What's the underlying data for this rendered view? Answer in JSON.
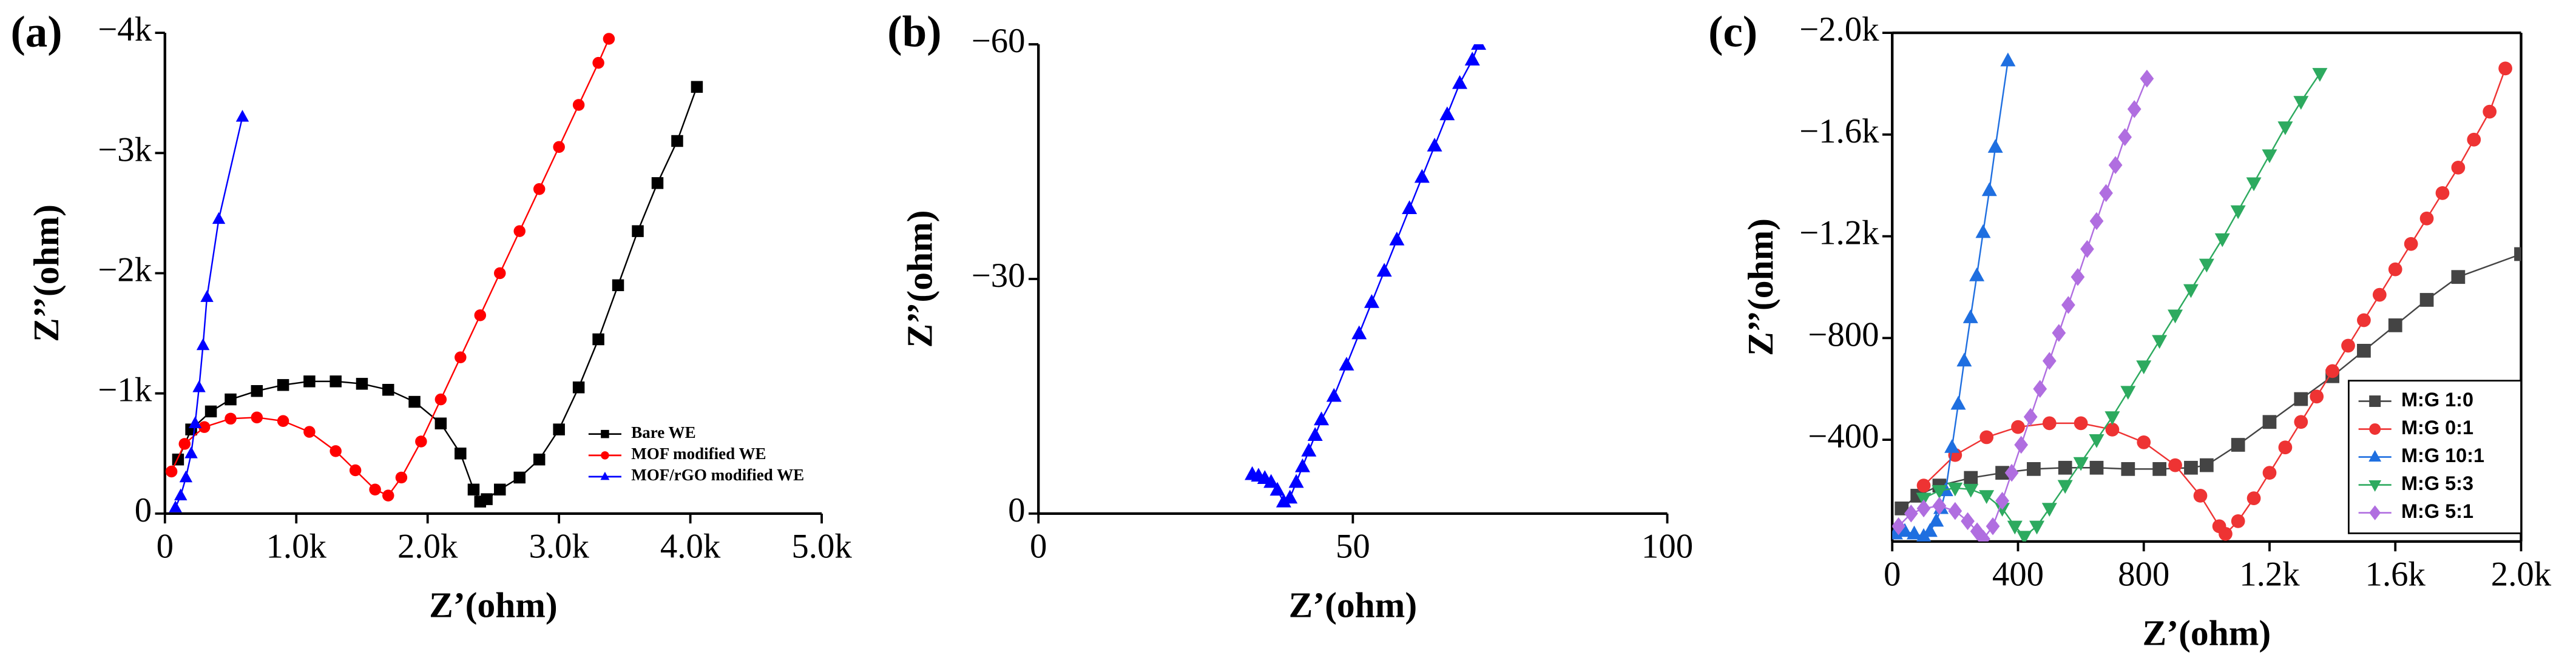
{
  "chart_data": [
    {
      "type": "line",
      "title": "(a)",
      "x_label": "Z’(ohm)",
      "y_label": "Z’’(ohm)",
      "xlim": [
        0,
        5000
      ],
      "ylim": [
        0,
        -4000
      ],
      "box": false,
      "legend": "lower right",
      "xticks": [
        0,
        {
          "value": 1000,
          "label": "1.0k"
        },
        {
          "value": 2000,
          "label": "2.0k"
        },
        {
          "value": 3000,
          "label": "3.0k"
        },
        {
          "value": 4000,
          "label": "4.0k"
        },
        {
          "value": 5000,
          "label": "5.0k"
        }
      ],
      "yticks": [
        0,
        {
          "value": -1000,
          "label": "−1k"
        },
        {
          "value": -2000,
          "label": "−2k"
        },
        {
          "value": -3000,
          "label": "−3k"
        },
        {
          "value": -4000,
          "label": "−4k"
        }
      ],
      "series": [
        {
          "name": "Bare WE",
          "color": "#000000",
          "marker": "square",
          "x": [
            100,
            200,
            350,
            500,
            700,
            900,
            1100,
            1300,
            1500,
            1700,
            1900,
            2100,
            2250,
            2350,
            2400,
            2450,
            2550,
            2700,
            2850,
            3000,
            3150,
            3300,
            3450,
            3600,
            3750,
            3900,
            4050
          ],
          "values": [
            -450,
            -700,
            -850,
            -950,
            -1020,
            -1070,
            -1100,
            -1100,
            -1080,
            -1030,
            -930,
            -750,
            -500,
            -200,
            -100,
            -120,
            -200,
            -300,
            -450,
            -700,
            -1050,
            -1450,
            -1900,
            -2350,
            -2750,
            -3100,
            -3550
          ]
        },
        {
          "name": "MOF modified WE",
          "color": "#ff0000",
          "marker": "circle",
          "x": [
            50,
            150,
            300,
            500,
            700,
            900,
            1100,
            1300,
            1450,
            1600,
            1700,
            1800,
            1950,
            2100,
            2250,
            2400,
            2550,
            2700,
            2850,
            3000,
            3150,
            3300,
            3380
          ],
          "values": [
            -350,
            -580,
            -720,
            -790,
            -800,
            -770,
            -680,
            -520,
            -360,
            -200,
            -150,
            -300,
            -600,
            -950,
            -1300,
            -1650,
            -2000,
            -2350,
            -2700,
            -3050,
            -3400,
            -3750,
            -3950
          ]
        },
        {
          "name": "MOF/rGO modified WE",
          "color": "#0000ff",
          "marker": "triangle",
          "x": [
            80,
            120,
            160,
            200,
            230,
            260,
            290,
            320,
            410,
            590
          ],
          "values": [
            -50,
            -150,
            -300,
            -500,
            -750,
            -1050,
            -1400,
            -1800,
            -2450,
            -3300
          ]
        }
      ]
    },
    {
      "type": "line",
      "title": "(b)",
      "x_label": "Z’(ohm)",
      "y_label": "Z’’(ohm)",
      "xlim": [
        0,
        100
      ],
      "ylim": [
        0,
        -60
      ],
      "box": false,
      "xticks": [
        0,
        50,
        100
      ],
      "yticks": [
        0,
        {
          "value": -30,
          "label": "−30"
        },
        {
          "value": -60,
          "label": "−60"
        }
      ],
      "series": [
        {
          "color": "#0000ff",
          "marker": "triangle",
          "x": [
            34,
            35,
            36,
            37,
            38,
            39,
            40,
            41,
            42,
            43,
            44,
            45,
            47,
            49,
            51,
            53,
            55,
            57,
            59,
            61,
            63,
            65,
            67,
            69,
            70
          ],
          "values": [
            -5,
            -4.8,
            -4.5,
            -4,
            -3,
            -1.5,
            -2,
            -4,
            -6,
            -8,
            -10,
            -12,
            -15,
            -19,
            -23,
            -27,
            -31,
            -35,
            -39,
            -43,
            -47,
            -51,
            -55,
            -58,
            -60
          ]
        }
      ]
    },
    {
      "type": "line",
      "title": "(c)",
      "x_label": "Z’(ohm)",
      "y_label": "Z’’(ohm)",
      "xlim": [
        0,
        2000
      ],
      "ylim": [
        0,
        -2000
      ],
      "box": true,
      "legend": "lower right",
      "xticks": [
        0,
        400,
        800,
        {
          "value": 1200,
          "label": "1.2k"
        },
        {
          "value": 1600,
          "label": "1.6k"
        },
        {
          "value": 2000,
          "label": "2.0k"
        }
      ],
      "yticks": [
        {
          "value": -400,
          "label": "−400"
        },
        {
          "value": -800,
          "label": "−800"
        },
        {
          "value": -1200,
          "label": "−1.2k"
        },
        {
          "value": -1600,
          "label": "−1.6k"
        },
        {
          "value": -2000,
          "label": "−2.0k"
        }
      ],
      "series": [
        {
          "name": "M:G 1:0",
          "color": "#444444",
          "marker": "square",
          "x": [
            30,
            80,
            150,
            250,
            350,
            450,
            550,
            650,
            750,
            850,
            950,
            1000,
            1100,
            1200,
            1300,
            1400,
            1500,
            1600,
            1700,
            1800,
            2000
          ],
          "values": [
            -130,
            -180,
            -220,
            -250,
            -270,
            -285,
            -290,
            -290,
            -285,
            -285,
            -290,
            -300,
            -380,
            -470,
            -560,
            -650,
            -750,
            -850,
            -950,
            -1040,
            -1130
          ]
        },
        {
          "name": "M:G 0:1",
          "color": "#ee3333",
          "marker": "circle",
          "x": [
            100,
            200,
            300,
            400,
            500,
            600,
            700,
            800,
            900,
            980,
            1040,
            1060,
            1100,
            1150,
            1200,
            1250,
            1300,
            1350,
            1400,
            1450,
            1500,
            1550,
            1600,
            1650,
            1700,
            1750,
            1800,
            1850,
            1900,
            1950
          ],
          "values": [
            -220,
            -340,
            -410,
            -450,
            -465,
            -465,
            -440,
            -390,
            -300,
            -180,
            -60,
            -30,
            -80,
            -170,
            -270,
            -370,
            -470,
            -570,
            -670,
            -770,
            -870,
            -970,
            -1070,
            -1170,
            -1270,
            -1370,
            -1470,
            -1580,
            -1690,
            -1860
          ]
        },
        {
          "name": "M:G 10:1",
          "color": "#1f6fe0",
          "marker": "triangle",
          "x": [
            10,
            40,
            70,
            100,
            120,
            140,
            155,
            170,
            190,
            210,
            229,
            249,
            269,
            289,
            309,
            328,
            368
          ],
          "values": [
            -30,
            -40,
            -30,
            -20,
            -40,
            -80,
            -130,
            -200,
            -370,
            -540,
            -710,
            -880,
            -1045,
            -1215,
            -1380,
            -1550,
            -1890
          ]
        },
        {
          "name": "M:G 5:3",
          "color": "#2daa5f",
          "marker": "triangle-down",
          "x": [
            100,
            150,
            200,
            250,
            300,
            350,
            390,
            420,
            460,
            500,
            550,
            600,
            650,
            700,
            750,
            800,
            850,
            900,
            950,
            1000,
            1050,
            1100,
            1150,
            1200,
            1250,
            1300,
            1360
          ],
          "values": [
            -170,
            -200,
            -210,
            -205,
            -180,
            -130,
            -60,
            -20,
            -60,
            -130,
            -220,
            -310,
            -400,
            -490,
            -590,
            -690,
            -790,
            -890,
            -990,
            -1090,
            -1190,
            -1300,
            -1410,
            -1520,
            -1630,
            -1730,
            -1840
          ]
        },
        {
          "name": "M:G 5:1",
          "color": "#b06ee0",
          "marker": "diamond",
          "x": [
            20,
            60,
            100,
            150,
            200,
            240,
            270,
            290,
            320,
            350,
            380,
            410,
            440,
            470,
            500,
            530,
            560,
            590,
            620,
            650,
            680,
            710,
            740,
            770,
            810
          ],
          "values": [
            -60,
            -110,
            -130,
            -140,
            -120,
            -80,
            -40,
            -10,
            -60,
            -160,
            -270,
            -380,
            -490,
            -600,
            -710,
            -820,
            -930,
            -1040,
            -1150,
            -1260,
            -1370,
            -1480,
            -1590,
            -1700,
            -1820
          ]
        }
      ]
    }
  ]
}
